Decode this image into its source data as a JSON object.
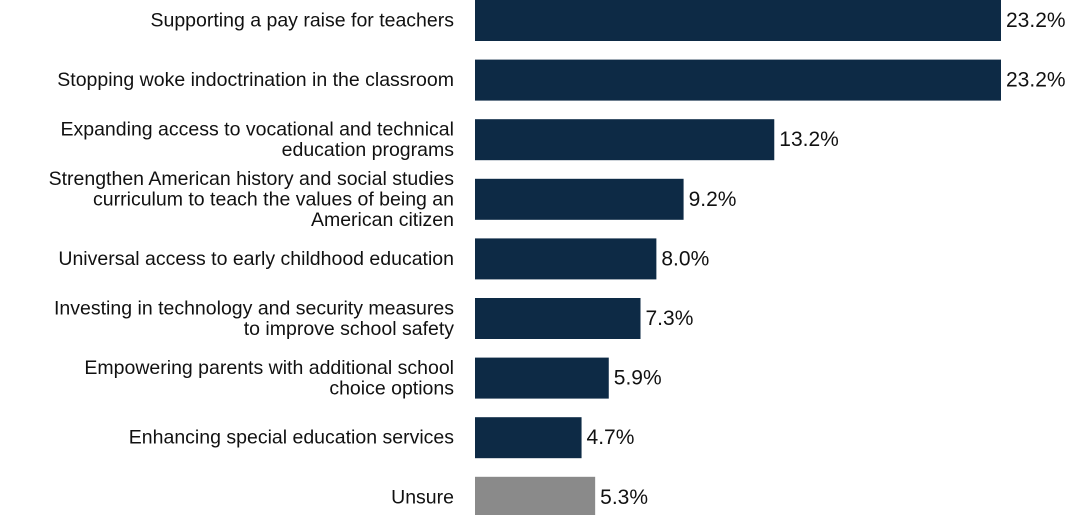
{
  "chart_data": {
    "type": "bar",
    "orientation": "horizontal",
    "title": "",
    "xlabel": "",
    "ylabel": "",
    "value_unit": "%",
    "xlim": [
      0,
      23.2
    ],
    "grid": false,
    "legend": "none",
    "bar_color": "#0d2a45",
    "highlight_color": "#8a8a8a",
    "categories": [
      [
        "Supporting a pay raise for teachers"
      ],
      [
        "Stopping woke indoctrination in the classroom"
      ],
      [
        "Expanding access to vocational and technical",
        "education programs"
      ],
      [
        "Strengthen American history and social studies",
        "curriculum to teach the values of being an",
        "American citizen"
      ],
      [
        "Universal access to early childhood education"
      ],
      [
        "Investing in technology and security measures",
        "to improve school safety"
      ],
      [
        "Empowering parents with additional school",
        "choice options"
      ],
      [
        "Enhancing special education services"
      ],
      [
        "Unsure"
      ]
    ],
    "values": [
      23.2,
      23.2,
      13.2,
      9.2,
      8.0,
      7.3,
      5.9,
      4.7,
      5.3
    ],
    "value_labels": [
      "23.2%",
      "23.2%",
      "13.2%",
      "9.2%",
      "8.0%",
      "7.3%",
      "5.9%",
      "4.7%",
      "5.3%"
    ],
    "bar_colors": [
      "#0d2a45",
      "#0d2a45",
      "#0d2a45",
      "#0d2a45",
      "#0d2a45",
      "#0d2a45",
      "#0d2a45",
      "#0d2a45",
      "#8a8a8a"
    ]
  }
}
